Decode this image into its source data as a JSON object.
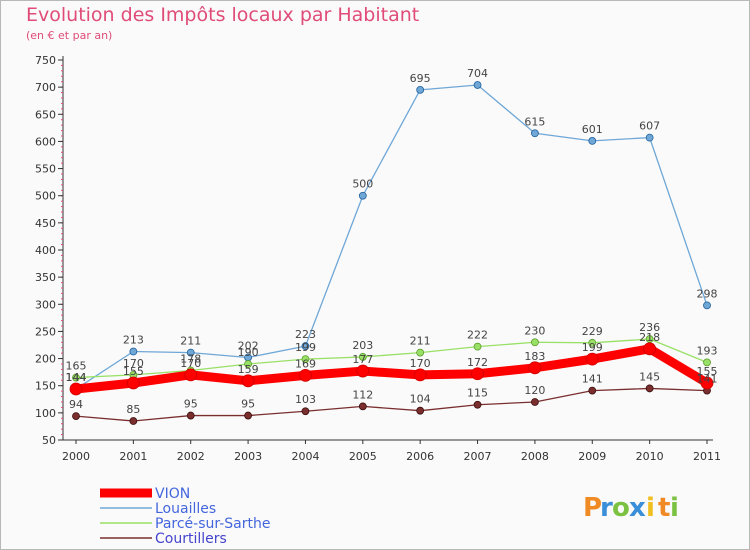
{
  "chart_data": {
    "type": "line",
    "title": "Evolution des Impôts locaux par Habitant",
    "subtitle": "(en € et par an)",
    "xlabel": "",
    "ylabel": "",
    "x": [
      "2000",
      "2001",
      "2002",
      "2003",
      "2004",
      "2005",
      "2006",
      "2007",
      "2008",
      "2009",
      "2010",
      "2011"
    ],
    "ylim": [
      50,
      750
    ],
    "yticks": [
      50,
      100,
      150,
      200,
      250,
      300,
      350,
      400,
      450,
      500,
      550,
      600,
      650,
      700,
      750
    ],
    "grid": false,
    "legend_placement": "bottom-left",
    "series": [
      {
        "name": "VION",
        "color": "#ff0000",
        "values": [
          144,
          155,
          170,
          159,
          169,
          177,
          170,
          172,
          183,
          199,
          218,
          155
        ]
      },
      {
        "name": "Louailles",
        "color": "#6fa7d7",
        "values": [
          144,
          213,
          211,
          202,
          223,
          500,
          695,
          704,
          615,
          601,
          607,
          298
        ]
      },
      {
        "name": "Parcé-sur-Sarthe",
        "color": "#99e066",
        "values": [
          165,
          170,
          178,
          190,
          199,
          203,
          211,
          222,
          230,
          229,
          236,
          193
        ]
      },
      {
        "name": "Courtillers",
        "color": "#7a2e2e",
        "values": [
          94,
          85,
          95,
          95,
          103,
          112,
          104,
          115,
          120,
          141,
          145,
          141
        ]
      }
    ]
  },
  "logo": {
    "letters": [
      "P",
      "r",
      "o",
      "x",
      "i",
      "t",
      "i"
    ],
    "colors": [
      "#f08a24",
      "#3b8fd8",
      "#7cc242",
      "#3b8fd8",
      "#f0c020",
      "#f08a24",
      "#7cc242"
    ]
  }
}
